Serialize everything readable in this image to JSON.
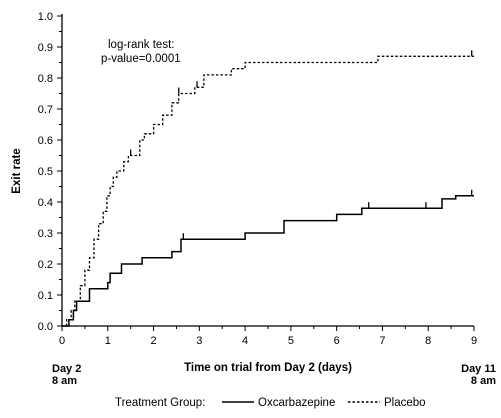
{
  "chart_data": {
    "type": "line",
    "title": "",
    "xlabel": "Time on trial from Day 2 (days)",
    "ylabel": "Exit rate",
    "xlim": [
      0,
      9
    ],
    "ylim": [
      0,
      1.0
    ],
    "x_ticks": [
      0,
      1,
      2,
      3,
      4,
      5,
      6,
      7,
      8,
      9
    ],
    "y_ticks": [
      0.0,
      0.1,
      0.2,
      0.3,
      0.4,
      0.5,
      0.6,
      0.7,
      0.8,
      0.9,
      1.0
    ],
    "y_tick_labels": [
      "0.0",
      "0.1",
      "0.2",
      "0.3",
      "0.4",
      "0.5",
      "0.6",
      "0.7",
      "0.8",
      "0.9",
      "1.0"
    ],
    "start_label": [
      "Day 2",
      "8 am"
    ],
    "end_label": [
      "Day 11",
      "8 am"
    ],
    "annotation": [
      "log-rank test:",
      "p-value=0.0001"
    ],
    "legend": {
      "title": "Treatment Group:",
      "position": "bottom"
    },
    "series": [
      {
        "name": "Oxcarbazepine",
        "line_style": "solid",
        "points": [
          [
            0,
            0
          ],
          [
            0.15,
            0
          ],
          [
            0.15,
            0.02
          ],
          [
            0.25,
            0.02
          ],
          [
            0.25,
            0.05
          ],
          [
            0.32,
            0.05
          ],
          [
            0.32,
            0.08
          ],
          [
            0.6,
            0.08
          ],
          [
            0.6,
            0.12
          ],
          [
            1.0,
            0.12
          ],
          [
            1.0,
            0.14
          ],
          [
            1.05,
            0.14
          ],
          [
            1.05,
            0.17
          ],
          [
            1.3,
            0.17
          ],
          [
            1.3,
            0.2
          ],
          [
            1.75,
            0.2
          ],
          [
            1.75,
            0.22
          ],
          [
            2.4,
            0.22
          ],
          [
            2.4,
            0.24
          ],
          [
            2.6,
            0.24
          ],
          [
            2.6,
            0.28
          ],
          [
            4.0,
            0.28
          ],
          [
            4.0,
            0.3
          ],
          [
            4.85,
            0.3
          ],
          [
            4.85,
            0.34
          ],
          [
            6.0,
            0.34
          ],
          [
            6.0,
            0.36
          ],
          [
            6.55,
            0.36
          ],
          [
            6.55,
            0.38
          ],
          [
            8.3,
            0.38
          ],
          [
            8.3,
            0.41
          ],
          [
            8.6,
            0.41
          ],
          [
            8.6,
            0.42
          ],
          [
            9.0,
            0.42
          ]
        ],
        "censor_x": [
          2.65,
          6.7,
          7.95,
          8.95
        ]
      },
      {
        "name": "Placebo",
        "line_style": "dashed",
        "points": [
          [
            0,
            0
          ],
          [
            0.1,
            0
          ],
          [
            0.1,
            0.02
          ],
          [
            0.2,
            0.02
          ],
          [
            0.2,
            0.05
          ],
          [
            0.28,
            0.05
          ],
          [
            0.28,
            0.08
          ],
          [
            0.4,
            0.08
          ],
          [
            0.4,
            0.13
          ],
          [
            0.5,
            0.13
          ],
          [
            0.5,
            0.18
          ],
          [
            0.6,
            0.18
          ],
          [
            0.6,
            0.22
          ],
          [
            0.7,
            0.22
          ],
          [
            0.7,
            0.28
          ],
          [
            0.8,
            0.28
          ],
          [
            0.8,
            0.33
          ],
          [
            0.9,
            0.33
          ],
          [
            0.9,
            0.37
          ],
          [
            0.98,
            0.37
          ],
          [
            0.98,
            0.42
          ],
          [
            1.05,
            0.42
          ],
          [
            1.05,
            0.45
          ],
          [
            1.12,
            0.45
          ],
          [
            1.12,
            0.48
          ],
          [
            1.2,
            0.48
          ],
          [
            1.2,
            0.5
          ],
          [
            1.35,
            0.5
          ],
          [
            1.35,
            0.53
          ],
          [
            1.45,
            0.53
          ],
          [
            1.45,
            0.55
          ],
          [
            1.7,
            0.55
          ],
          [
            1.7,
            0.6
          ],
          [
            1.8,
            0.6
          ],
          [
            1.8,
            0.62
          ],
          [
            2.0,
            0.62
          ],
          [
            2.0,
            0.65
          ],
          [
            2.2,
            0.65
          ],
          [
            2.2,
            0.68
          ],
          [
            2.4,
            0.68
          ],
          [
            2.4,
            0.72
          ],
          [
            2.55,
            0.72
          ],
          [
            2.55,
            0.75
          ],
          [
            2.9,
            0.75
          ],
          [
            2.9,
            0.77
          ],
          [
            3.1,
            0.77
          ],
          [
            3.1,
            0.81
          ],
          [
            3.7,
            0.81
          ],
          [
            3.7,
            0.83
          ],
          [
            4.0,
            0.83
          ],
          [
            4.0,
            0.85
          ],
          [
            6.9,
            0.85
          ],
          [
            6.9,
            0.87
          ],
          [
            9.0,
            0.87
          ]
        ],
        "censor_x": [
          1.5,
          2.55,
          2.95,
          8.95
        ]
      }
    ]
  }
}
